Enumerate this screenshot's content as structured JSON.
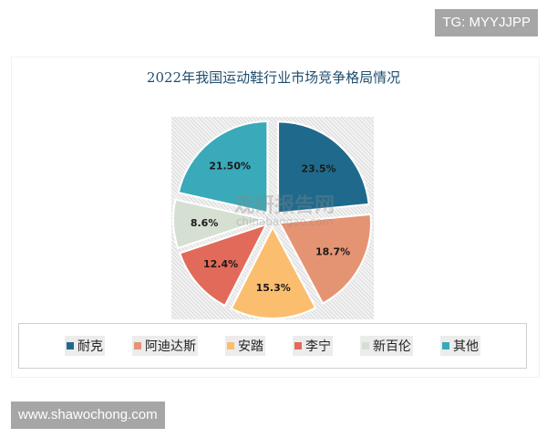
{
  "chart_data": {
    "type": "pie",
    "title": "2022年我国运动鞋行业市场竞争格局情况",
    "categories": [
      "耐克",
      "阿迪达斯",
      "安踏",
      "李宁",
      "新百伦",
      "其他"
    ],
    "values": [
      23.5,
      18.7,
      15.3,
      12.4,
      8.6,
      21.5
    ],
    "data_labels": [
      "23.5%",
      "18.7%",
      "15.3%",
      "12.4%",
      "8.6%",
      "21.50%"
    ],
    "colors": [
      "#1f6a8c",
      "#e59473",
      "#fbbe6e",
      "#e26a5a",
      "#d5e0d2",
      "#3aa9b9"
    ],
    "exploded": true,
    "legend_position": "bottom"
  },
  "watermark": "观研报告网 chinabaogao.com",
  "tags": {
    "top_right": "TG: MYYJJPP",
    "bottom_left": "www.shawochong.com"
  }
}
